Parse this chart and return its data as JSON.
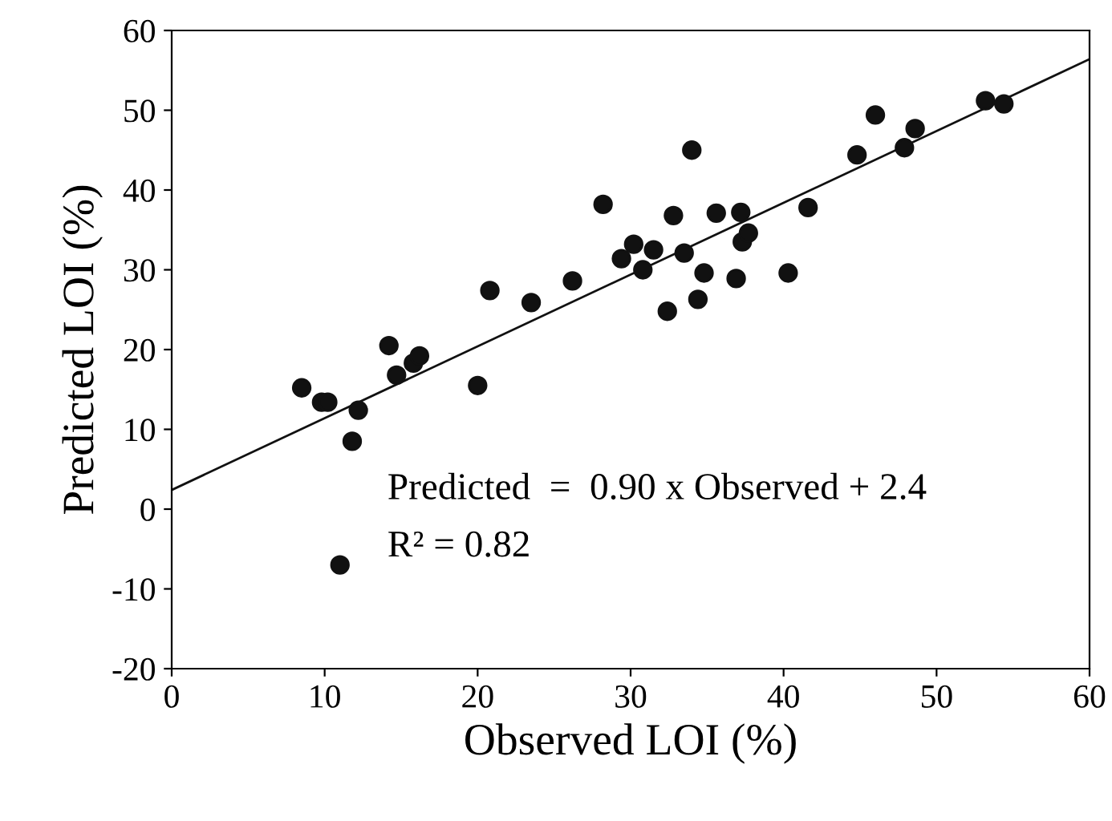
{
  "chart_data": {
    "type": "scatter",
    "xlabel": "Observed LOI (%)",
    "ylabel": "Predicted LOI (%)",
    "xlim": [
      0,
      60
    ],
    "ylim": [
      -20,
      60
    ],
    "xticks": [
      0,
      10,
      20,
      30,
      40,
      50,
      60
    ],
    "yticks": [
      -20,
      -10,
      0,
      10,
      20,
      30,
      40,
      50,
      60
    ],
    "grid": false,
    "annotations": [
      "Predicted  =  0.90 x Observed + 2.4",
      "R² = 0.82"
    ],
    "series": [
      {
        "marker": "circle",
        "color": "#111111",
        "x": [
          8.5,
          9.8,
          10.2,
          12.2,
          11.8,
          11,
          14.2,
          14.7,
          15.8,
          16.2,
          20,
          20.8,
          23.5,
          26.2,
          28.2,
          29.4,
          30.2,
          30.8,
          31.5,
          32.4,
          32.8,
          33.5,
          34,
          34.4,
          34.8,
          35.6,
          36.9,
          37.2,
          37.3,
          37.7,
          40.3,
          41.6,
          44.8,
          46,
          47.9,
          48.6,
          53.2,
          54.4
        ],
        "values": [
          15.2,
          13.4,
          13.4,
          12.4,
          8.5,
          -7,
          20.5,
          16.8,
          18.3,
          19.2,
          15.5,
          27.4,
          25.9,
          28.6,
          38.2,
          31.4,
          33.2,
          30,
          32.5,
          24.8,
          36.8,
          32.1,
          45,
          26.3,
          29.6,
          37.1,
          28.9,
          37.2,
          33.5,
          34.6,
          29.6,
          37.8,
          44.4,
          49.4,
          45.3,
          47.7,
          51.2,
          50.8
        ]
      },
      {
        "type": "line",
        "color": "#111111",
        "line_style": "solid",
        "x": [
          0,
          60
        ],
        "values": [
          2.4,
          56.4
        ]
      }
    ]
  }
}
